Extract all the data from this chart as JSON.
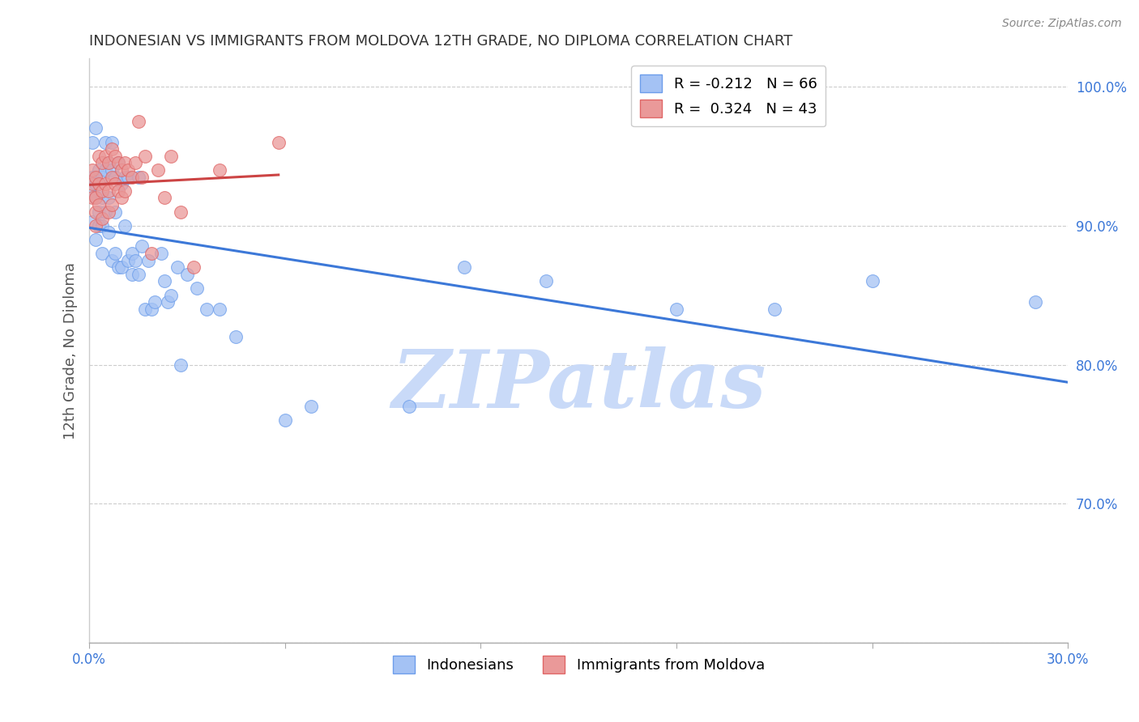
{
  "title": "INDONESIAN VS IMMIGRANTS FROM MOLDOVA 12TH GRADE, NO DIPLOMA CORRELATION CHART",
  "source": "Source: ZipAtlas.com",
  "ylabel": "12th Grade, No Diploma",
  "xlim": [
    0.0,
    0.3
  ],
  "ylim": [
    0.6,
    1.02
  ],
  "ytick_values": [
    0.6,
    0.7,
    0.8,
    0.9,
    1.0
  ],
  "xtick_values": [
    0.0,
    0.06,
    0.12,
    0.18,
    0.24,
    0.3
  ],
  "xtick_labels": [
    "0.0%",
    "",
    "",
    "",
    "",
    "30.0%"
  ],
  "legend_r_blue": "-0.212",
  "legend_n_blue": "66",
  "legend_r_pink": "0.324",
  "legend_n_pink": "43",
  "blue_scatter_color": "#a4c2f4",
  "blue_edge_color": "#6d9eeb",
  "pink_scatter_color": "#ea9999",
  "pink_edge_color": "#e06666",
  "line_blue_color": "#3c78d8",
  "line_pink_color": "#cc4444",
  "background_color": "#ffffff",
  "watermark_text": "ZIPatlas",
  "watermark_color": "#c9daf8",
  "indonesian_x": [
    0.001,
    0.001,
    0.001,
    0.001,
    0.002,
    0.002,
    0.002,
    0.002,
    0.003,
    0.003,
    0.003,
    0.003,
    0.004,
    0.004,
    0.004,
    0.004,
    0.005,
    0.005,
    0.005,
    0.006,
    0.006,
    0.006,
    0.007,
    0.007,
    0.007,
    0.008,
    0.008,
    0.008,
    0.009,
    0.009,
    0.01,
    0.01,
    0.011,
    0.011,
    0.012,
    0.012,
    0.013,
    0.013,
    0.014,
    0.015,
    0.015,
    0.016,
    0.017,
    0.018,
    0.019,
    0.02,
    0.022,
    0.023,
    0.024,
    0.025,
    0.027,
    0.028,
    0.03,
    0.033,
    0.036,
    0.04,
    0.045,
    0.06,
    0.068,
    0.098,
    0.115,
    0.14,
    0.18,
    0.21,
    0.24,
    0.29
  ],
  "indonesian_y": [
    0.903,
    0.925,
    0.935,
    0.96,
    0.93,
    0.92,
    0.89,
    0.97,
    0.94,
    0.93,
    0.91,
    0.9,
    0.935,
    0.92,
    0.9,
    0.88,
    0.96,
    0.94,
    0.91,
    0.945,
    0.92,
    0.895,
    0.96,
    0.94,
    0.875,
    0.935,
    0.91,
    0.88,
    0.945,
    0.87,
    0.93,
    0.87,
    0.935,
    0.9,
    0.935,
    0.875,
    0.88,
    0.865,
    0.875,
    0.935,
    0.865,
    0.885,
    0.84,
    0.875,
    0.84,
    0.845,
    0.88,
    0.86,
    0.845,
    0.85,
    0.87,
    0.8,
    0.865,
    0.855,
    0.84,
    0.84,
    0.82,
    0.76,
    0.77,
    0.77,
    0.87,
    0.86,
    0.84,
    0.84,
    0.86,
    0.845
  ],
  "moldova_x": [
    0.001,
    0.001,
    0.001,
    0.002,
    0.002,
    0.002,
    0.002,
    0.003,
    0.003,
    0.003,
    0.004,
    0.004,
    0.004,
    0.005,
    0.005,
    0.006,
    0.006,
    0.006,
    0.007,
    0.007,
    0.007,
    0.008,
    0.008,
    0.009,
    0.009,
    0.01,
    0.01,
    0.011,
    0.011,
    0.012,
    0.013,
    0.014,
    0.015,
    0.016,
    0.017,
    0.019,
    0.021,
    0.023,
    0.025,
    0.028,
    0.032,
    0.04,
    0.058
  ],
  "moldova_y": [
    0.94,
    0.93,
    0.92,
    0.935,
    0.92,
    0.91,
    0.9,
    0.95,
    0.93,
    0.915,
    0.945,
    0.925,
    0.905,
    0.95,
    0.93,
    0.945,
    0.925,
    0.91,
    0.955,
    0.935,
    0.915,
    0.95,
    0.93,
    0.945,
    0.925,
    0.94,
    0.92,
    0.945,
    0.925,
    0.94,
    0.935,
    0.945,
    0.975,
    0.935,
    0.95,
    0.88,
    0.94,
    0.92,
    0.95,
    0.91,
    0.87,
    0.94,
    0.96
  ]
}
